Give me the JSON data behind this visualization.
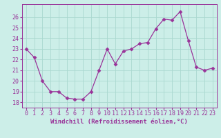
{
  "x": [
    0,
    1,
    2,
    3,
    4,
    5,
    6,
    7,
    8,
    9,
    10,
    11,
    12,
    13,
    14,
    15,
    16,
    17,
    18,
    19,
    20,
    21,
    22,
    23
  ],
  "y": [
    23.0,
    22.2,
    20.0,
    19.0,
    19.0,
    18.4,
    18.3,
    18.3,
    19.0,
    21.0,
    23.0,
    21.6,
    22.8,
    23.0,
    23.5,
    23.6,
    24.9,
    25.8,
    25.7,
    26.5,
    23.8,
    21.3,
    21.0,
    21.2
  ],
  "xlabel": "Windchill (Refroidissement éolien,°C)",
  "ylim": [
    17.5,
    27.2
  ],
  "xlim": [
    -0.5,
    23.5
  ],
  "yticks": [
    18,
    19,
    20,
    21,
    22,
    23,
    24,
    25,
    26
  ],
  "xticks": [
    0,
    1,
    2,
    3,
    4,
    5,
    6,
    7,
    8,
    9,
    10,
    11,
    12,
    13,
    14,
    15,
    16,
    17,
    18,
    19,
    20,
    21,
    22,
    23
  ],
  "line_color": "#993399",
  "marker": "D",
  "marker_size": 2.5,
  "bg_color": "#cceee8",
  "grid_color": "#aad8d0",
  "label_fontsize": 6.5,
  "tick_fontsize": 6.0
}
